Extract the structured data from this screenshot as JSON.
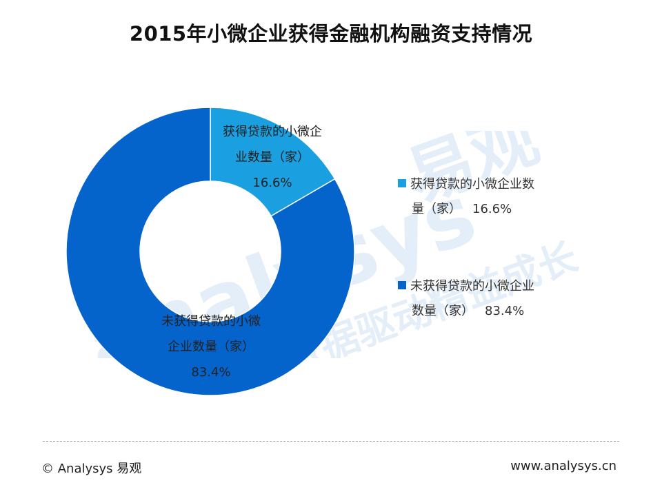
{
  "header": {
    "title": "2015年小微企业获得金融机构融资支持情况"
  },
  "chart_data": {
    "type": "pie",
    "variant": "donut",
    "title": "2015年小微企业获得金融机构融资支持情况",
    "slices": [
      {
        "label": "获得贷款的小微企业数量（家）",
        "label_lines": [
          "获得贷款的小微企",
          "业数量（家）"
        ],
        "value": 16.6,
        "display": "16.6%",
        "color": "#1aa0e0"
      },
      {
        "label": "未获得贷款的小微企业数量（家）",
        "label_lines": [
          "未获得贷款的小微",
          "企业数量（家）"
        ],
        "value": 83.4,
        "display": "83.4%",
        "color": "#0563cc"
      }
    ],
    "legend": {
      "position": "right",
      "items": [
        {
          "lines": [
            "获得贷款的小微企业数",
            "量（家）"
          ],
          "value": "16.6%",
          "color": "#1aa0e0"
        },
        {
          "lines": [
            "未获得贷款的小微企业",
            "数量（家）"
          ],
          "value": "83.4%",
          "color": "#0563cc"
        }
      ]
    }
  },
  "watermark": {
    "brand": "analysys",
    "brand_cn": "易观",
    "slogan": "数据驱动精益成长"
  },
  "footer": {
    "copyright": "© Analysys 易观",
    "website": "www.analysys.cn"
  }
}
